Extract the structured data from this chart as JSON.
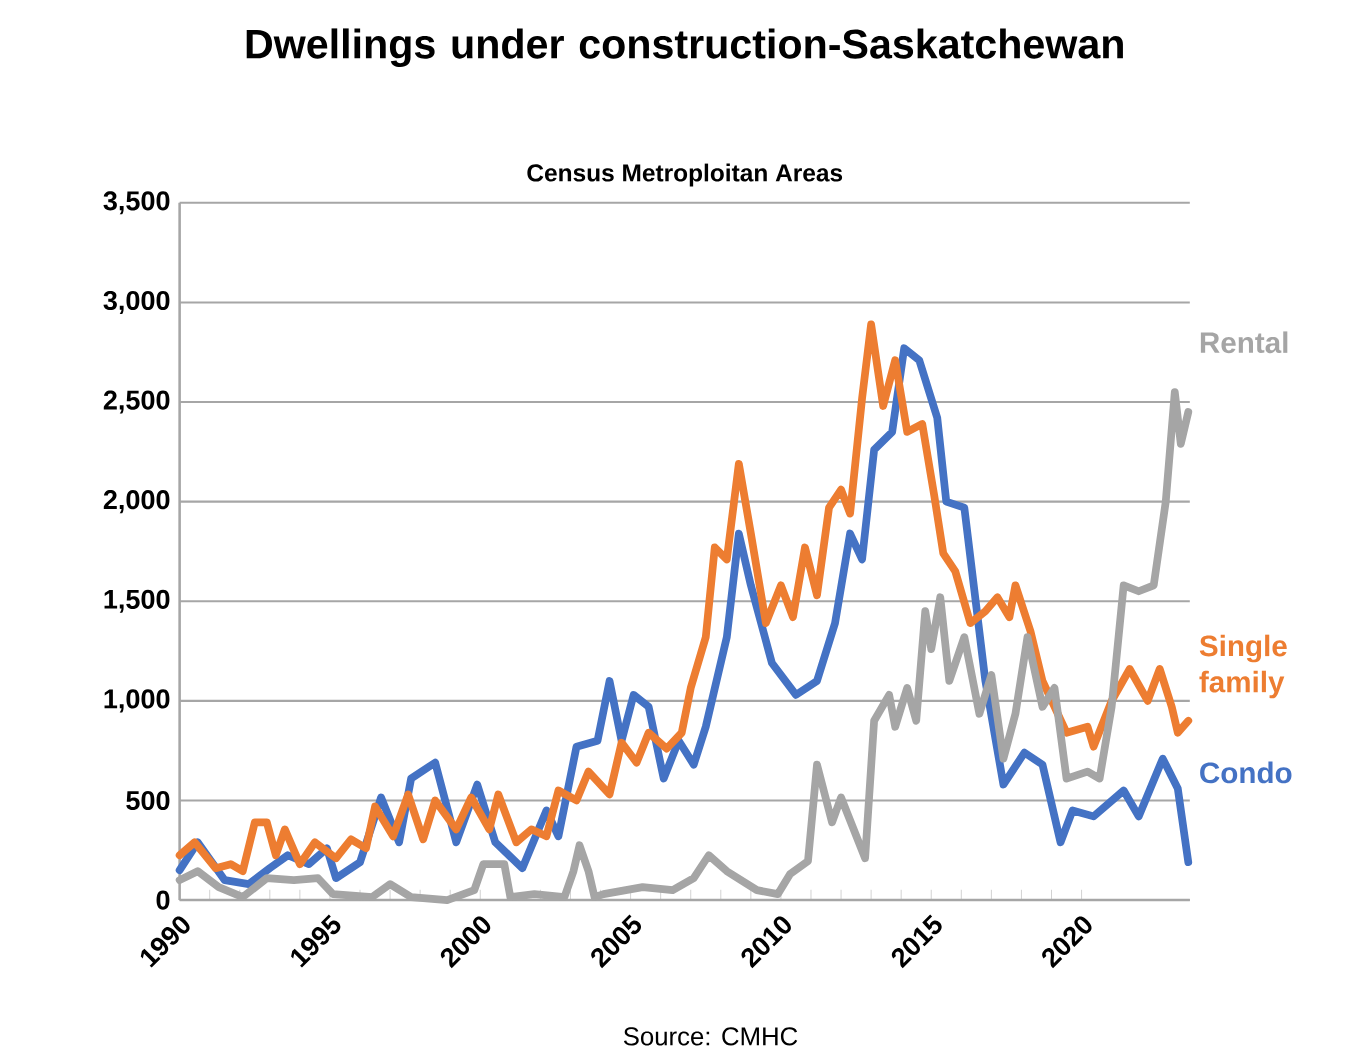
{
  "chart_data": {
    "type": "line",
    "title": "Dwellings under construction-Saskatchewan",
    "subtitle": "Census Metroploitan Areas",
    "annotations": [
      "Source: CMHC"
    ],
    "xlim": [
      1990,
      2023.6
    ],
    "xticks": [
      1990,
      1995,
      2000,
      2005,
      2010,
      2015,
      2020
    ],
    "ylim": [
      0,
      3500
    ],
    "yticks": [
      {
        "value": 0,
        "label": "0"
      },
      {
        "value": 500,
        "label": "500"
      },
      {
        "value": 1000,
        "label": "1,000"
      },
      {
        "value": 1500,
        "label": "1,500"
      },
      {
        "value": 2000,
        "label": "2,000"
      },
      {
        "value": 2500,
        "label": "2,500"
      },
      {
        "value": 3000,
        "label": "3,000"
      },
      {
        "value": 3500,
        "label": "3,500"
      }
    ],
    "grid": "y",
    "legend": false,
    "marker": "none",
    "line_style": "solid",
    "series": [
      {
        "name": "Condo",
        "color": "#4472c4",
        "x": [
          1990.0,
          1990.6,
          1991.5,
          1992.3,
          1993.0,
          1993.6,
          1994.3,
          1994.9,
          1995.2,
          1996.0,
          1996.7,
          1997.3,
          1997.7,
          1998.5,
          1999.2,
          1999.9,
          2000.5,
          2001.4,
          2002.2,
          2002.6,
          2003.2,
          2003.9,
          2004.3,
          2004.7,
          2005.1,
          2005.6,
          2006.1,
          2006.6,
          2007.1,
          2007.5,
          2008.2,
          2008.6,
          2009.0,
          2009.7,
          2010.5,
          2011.2,
          2011.8,
          2012.3,
          2012.7,
          2013.1,
          2013.7,
          2014.1,
          2014.6,
          2015.2,
          2015.5,
          2016.1,
          2016.8,
          2017.4,
          2018.1,
          2018.7,
          2019.3,
          2019.7,
          2020.4,
          2021.4,
          2021.9,
          2022.7,
          2023.2,
          2023.55
        ],
        "values": [
          150,
          290,
          100,
          80,
          160,
          225,
          180,
          260,
          110,
          190,
          515,
          290,
          610,
          690,
          290,
          580,
          290,
          160,
          450,
          320,
          770,
          800,
          1100,
          800,
          1030,
          970,
          610,
          800,
          680,
          870,
          1320,
          1840,
          1580,
          1190,
          1030,
          1100,
          1390,
          1840,
          1710,
          2260,
          2350,
          2770,
          2710,
          2420,
          2000,
          1970,
          1100,
          580,
          740,
          680,
          290,
          450,
          420,
          550,
          420,
          710,
          560,
          190
        ]
      },
      {
        "name": "Single family",
        "color": "#ed7d31",
        "x": [
          1990.0,
          1990.5,
          1991.2,
          1991.7,
          1992.1,
          1992.5,
          1992.9,
          1993.2,
          1993.5,
          1994.0,
          1994.5,
          1995.2,
          1995.7,
          1996.2,
          1996.5,
          1997.1,
          1997.6,
          1998.1,
          1998.5,
          1999.2,
          1999.7,
          2000.3,
          2000.6,
          2001.2,
          2001.7,
          2002.2,
          2002.6,
          2003.2,
          2003.6,
          2004.3,
          2004.7,
          2005.2,
          2005.6,
          2006.2,
          2006.7,
          2007.0,
          2007.5,
          2007.8,
          2008.2,
          2008.6,
          2009.0,
          2009.5,
          2010.0,
          2010.4,
          2010.8,
          2011.2,
          2011.6,
          2012.0,
          2012.3,
          2012.7,
          2013.0,
          2013.4,
          2013.8,
          2014.2,
          2014.7,
          2015.1,
          2015.4,
          2015.8,
          2016.3,
          2016.8,
          2017.2,
          2017.6,
          2017.8,
          2018.3,
          2018.7,
          2019.5,
          2020.2,
          2020.4,
          2021.0,
          2021.6,
          2022.2,
          2022.6,
          2023.0,
          2023.2,
          2023.55
        ],
        "values": [
          225,
          290,
          160,
          180,
          145,
          390,
          390,
          225,
          355,
          180,
          290,
          210,
          305,
          260,
          470,
          320,
          530,
          305,
          500,
          355,
          515,
          355,
          530,
          290,
          355,
          320,
          550,
          500,
          645,
          530,
          790,
          690,
          840,
          760,
          840,
          1065,
          1320,
          1770,
          1710,
          2190,
          1840,
          1390,
          1580,
          1420,
          1770,
          1530,
          1970,
          2060,
          1940,
          2520,
          2890,
          2480,
          2710,
          2350,
          2390,
          2030,
          1740,
          1650,
          1390,
          1450,
          1520,
          1420,
          1580,
          1350,
          1100,
          840,
          870,
          770,
          1000,
          1160,
          1000,
          1160,
          970,
          840,
          900
        ]
      },
      {
        "name": "Rental",
        "color": "#a5a5a5",
        "x": [
          1990.0,
          1990.6,
          1991.3,
          1992.1,
          1992.9,
          1993.8,
          1994.6,
          1995.1,
          1996.4,
          1997.0,
          1997.7,
          1998.9,
          1999.8,
          2000.1,
          2000.8,
          2001.0,
          2001.8,
          2002.8,
          2003.1,
          2003.3,
          2003.6,
          2003.8,
          2004.1,
          2005.4,
          2006.4,
          2007.1,
          2007.6,
          2008.2,
          2009.2,
          2009.9,
          2010.3,
          2010.9,
          2011.2,
          2011.7,
          2012.0,
          2012.8,
          2013.1,
          2013.6,
          2013.8,
          2014.2,
          2014.5,
          2014.8,
          2015.0,
          2015.3,
          2015.6,
          2016.1,
          2016.6,
          2017.0,
          2017.4,
          2017.8,
          2018.2,
          2018.7,
          2019.1,
          2019.5,
          2020.2,
          2020.6,
          2021.0,
          2021.4,
          2021.9,
          2022.4,
          2022.8,
          2023.1,
          2023.3,
          2023.55
        ],
        "values": [
          100,
          145,
          65,
          15,
          110,
          100,
          110,
          30,
          15,
          80,
          15,
          0,
          50,
          180,
          180,
          15,
          30,
          15,
          145,
          275,
          145,
          15,
          30,
          65,
          50,
          110,
          225,
          145,
          50,
          30,
          130,
          195,
          680,
          390,
          515,
          210,
          900,
          1030,
          870,
          1065,
          900,
          1450,
          1260,
          1520,
          1100,
          1320,
          935,
          1130,
          710,
          935,
          1320,
          970,
          1065,
          610,
          645,
          610,
          970,
          1580,
          1550,
          1580,
          2000,
          2550,
          2290,
          2450
        ]
      }
    ]
  }
}
